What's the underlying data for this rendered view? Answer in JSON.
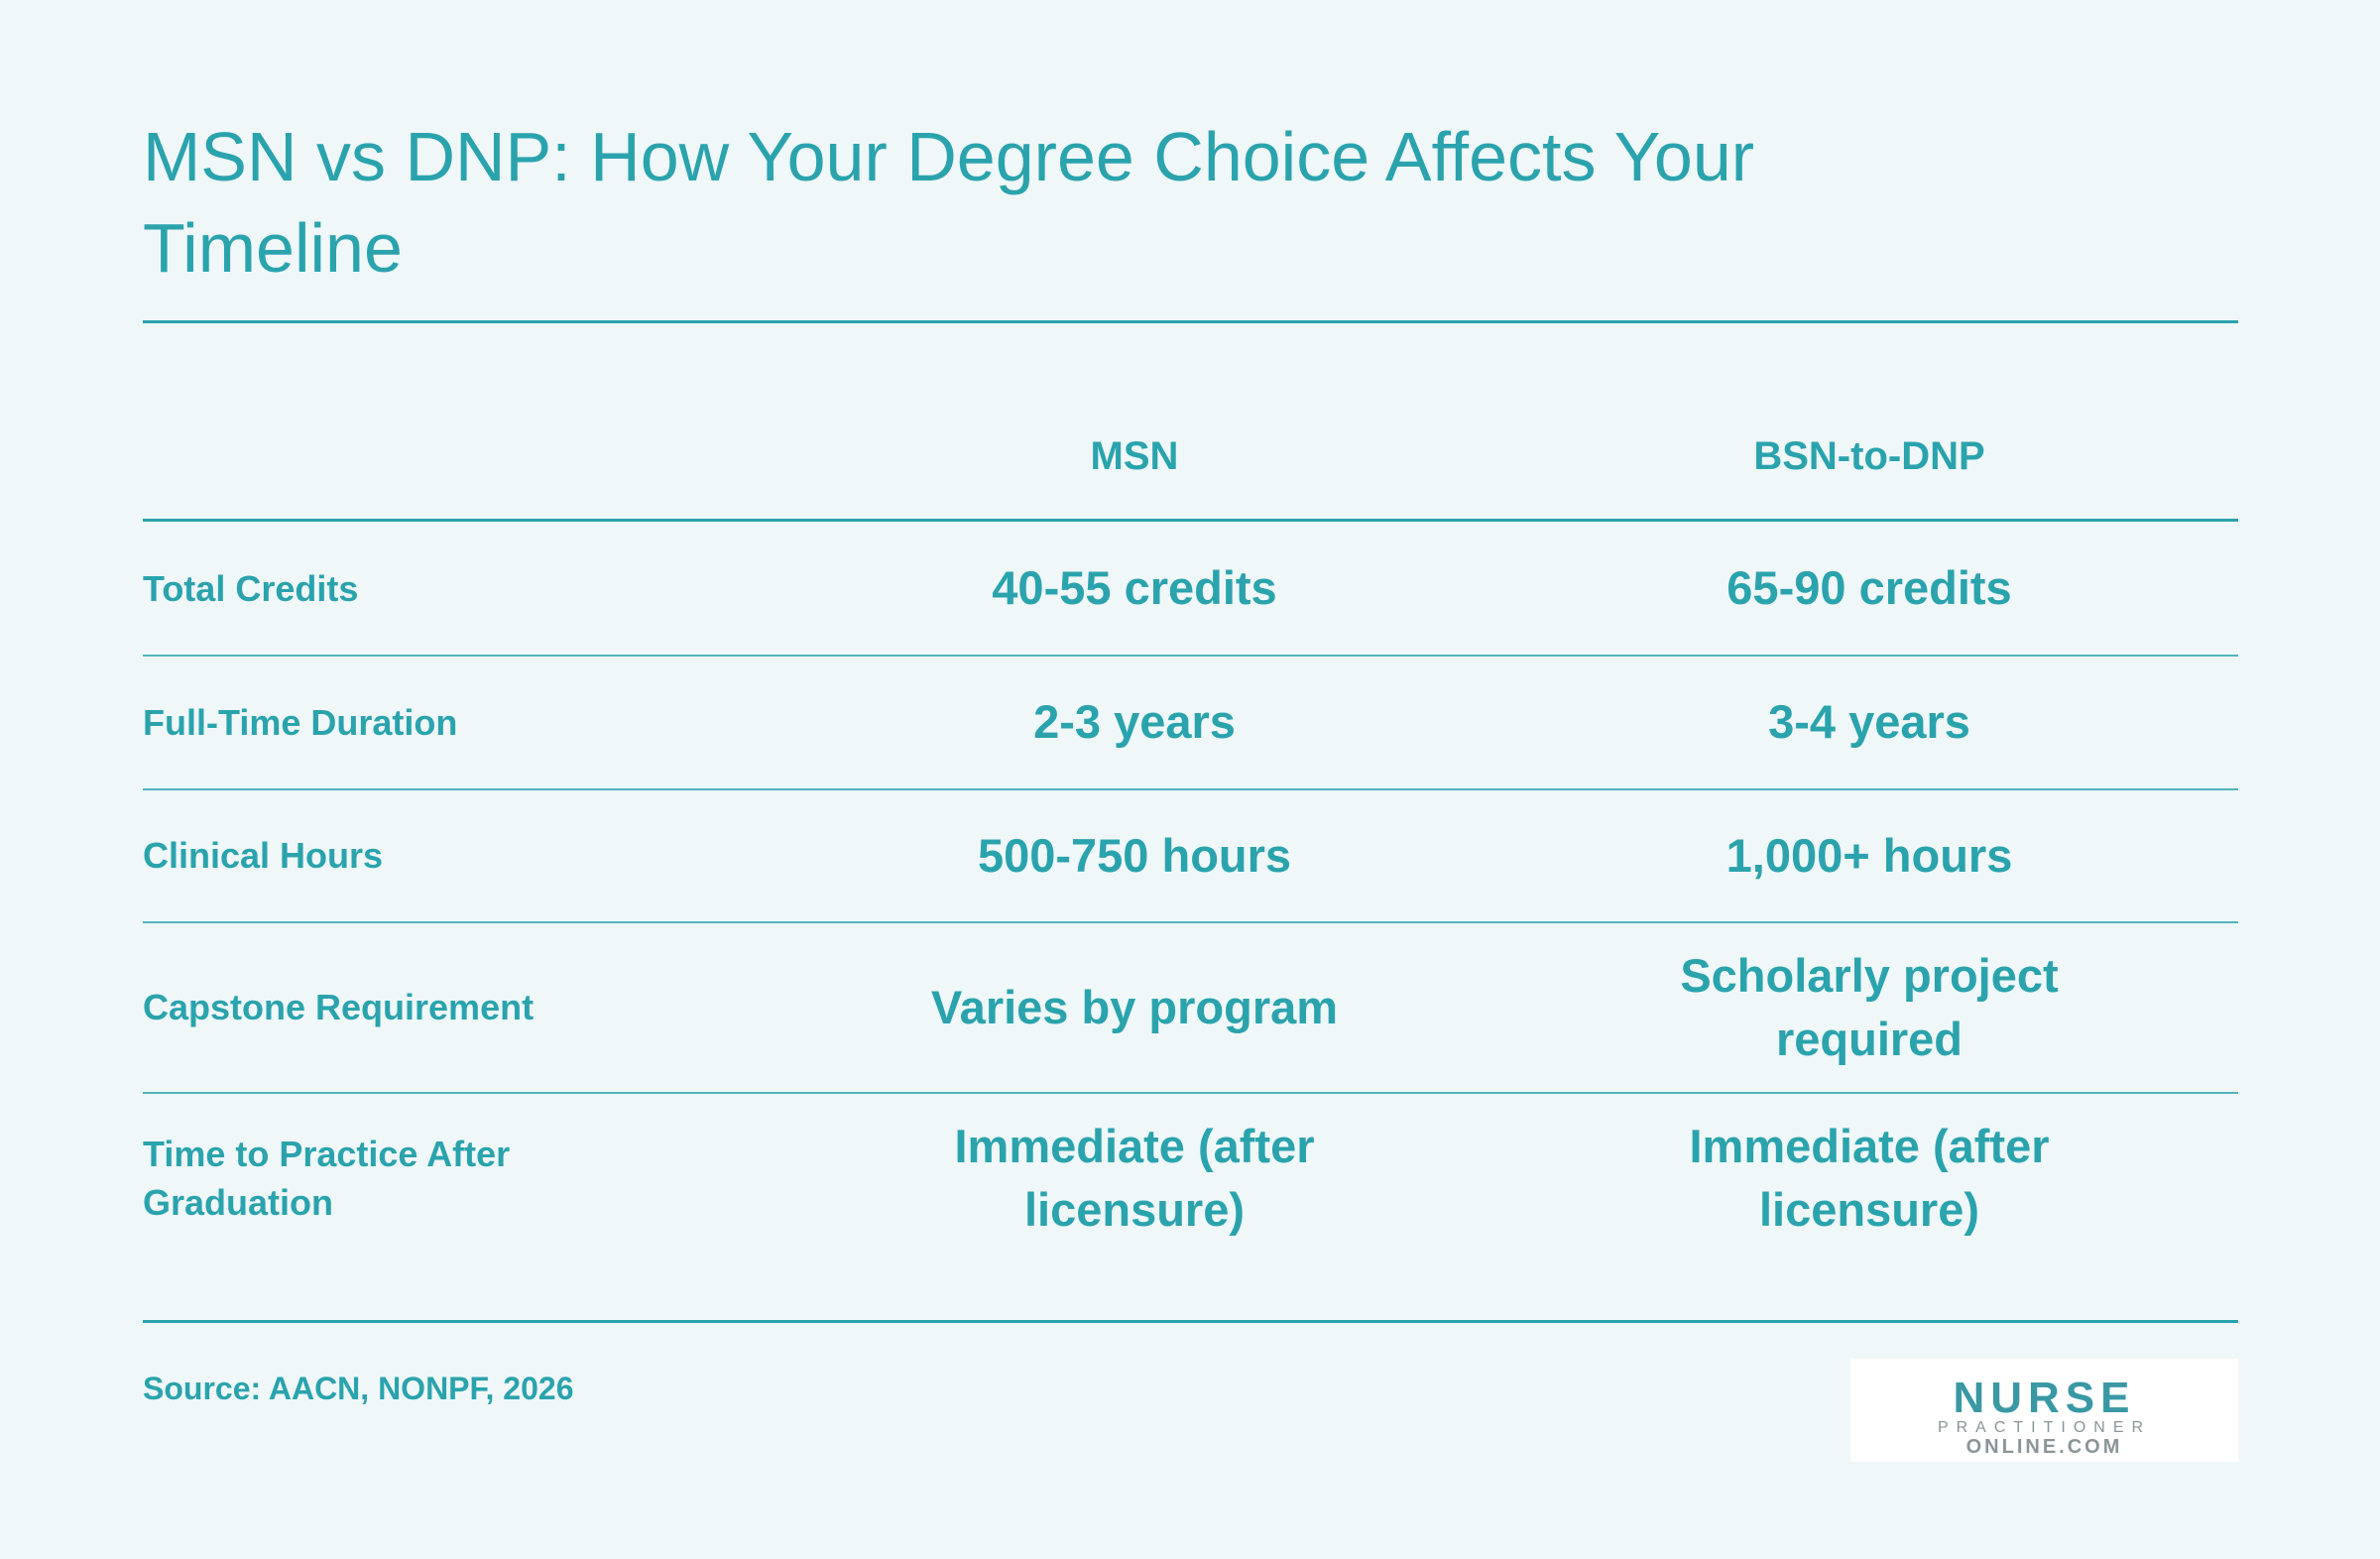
{
  "header": {
    "title": "MSN vs DNP: How Your Degree Choice Affects Your Timeline"
  },
  "table": {
    "columns": [
      "MSN",
      "BSN-to-DNP"
    ],
    "rows": [
      [
        "Total Credits",
        "40-55 credits",
        "65-90 credits"
      ],
      [
        "Full-Time Duration",
        "2-3 years",
        "3-4 years"
      ],
      [
        "Clinical Hours",
        "500-750 hours",
        "1,000+ hours"
      ],
      [
        "Capstone Requirement",
        "Varies by program",
        "Scholarly project required"
      ],
      [
        "Time to Practice After Graduation",
        "Immediate (after licensure)",
        "Immediate (after licensure)"
      ]
    ]
  },
  "footer": {
    "source": "Source: AACN, NONPF, 2026",
    "logo": {
      "line1": "NURSE",
      "line2": "PRACTITIONER",
      "line3": "ONLINE.COM"
    }
  }
}
